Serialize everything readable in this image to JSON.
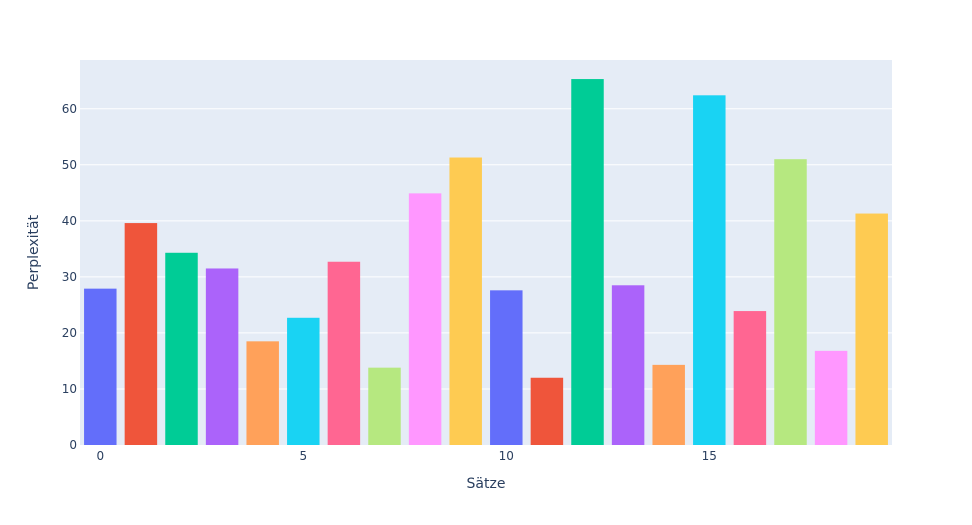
{
  "chart_data": {
    "type": "bar",
    "xlabel": "Sätze",
    "ylabel": "Perplexität",
    "x": [
      0,
      1,
      2,
      3,
      4,
      5,
      6,
      7,
      8,
      9,
      10,
      11,
      12,
      13,
      14,
      15,
      16,
      17,
      18,
      19
    ],
    "values": [
      27.9,
      39.6,
      34.3,
      31.5,
      18.5,
      22.7,
      32.7,
      13.8,
      44.9,
      51.3,
      27.6,
      12.0,
      65.3,
      28.5,
      14.3,
      62.4,
      23.9,
      51.0,
      16.8,
      41.3
    ],
    "colors": [
      "#636efa",
      "#ef553b",
      "#00cc96",
      "#ab63fa",
      "#ffa15a",
      "#19d3f3",
      "#ff6692",
      "#b6e880",
      "#ff97ff",
      "#fecb52",
      "#636efa",
      "#ef553b",
      "#00cc96",
      "#ab63fa",
      "#ffa15a",
      "#19d3f3",
      "#ff6692",
      "#b6e880",
      "#ff97ff",
      "#fecb52"
    ],
    "xlim": [
      -0.5,
      19.5
    ],
    "ylim": [
      0,
      68.7
    ],
    "x_ticks": [
      0,
      5,
      10,
      15
    ],
    "y_ticks": [
      0,
      10,
      20,
      30,
      40,
      50,
      60
    ],
    "grid": true,
    "legend": "none",
    "plot_bgcolor": "#e5ecf6"
  }
}
